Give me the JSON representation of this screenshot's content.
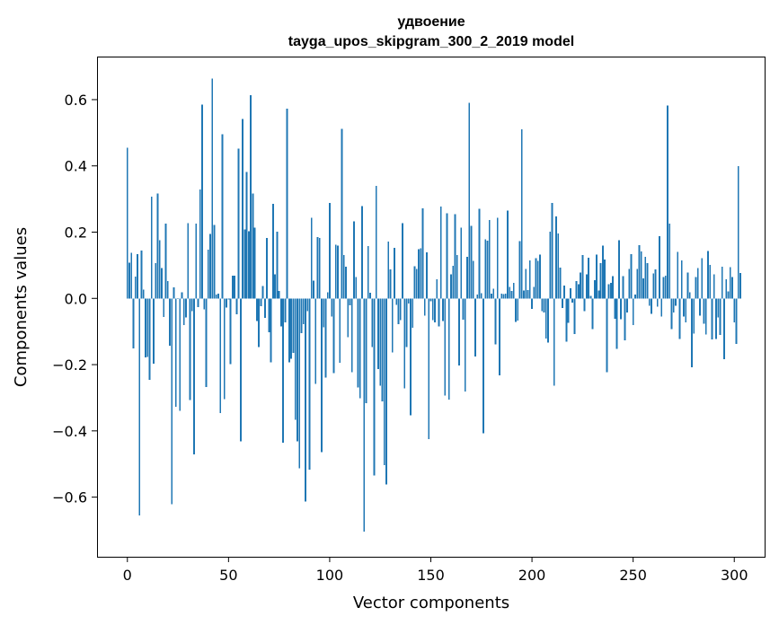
{
  "chart_data": {
    "type": "bar",
    "title_line1": "удвоение",
    "title_line2": "tayga_upos_skipgram_300_2_2019 model",
    "xlabel": "Vector components",
    "ylabel": "Components values",
    "xlim": [
      -15,
      315
    ],
    "ylim": [
      -0.78,
      0.73
    ],
    "xticks": [
      0,
      50,
      100,
      150,
      200,
      250,
      300
    ],
    "xtick_labels": [
      "0",
      "50",
      "100",
      "150",
      "200",
      "250",
      "300"
    ],
    "yticks": [
      -0.6,
      -0.4,
      -0.2,
      0.0,
      0.2,
      0.4,
      0.6
    ],
    "ytick_labels": [
      "−0.6",
      "−0.4",
      "−0.2",
      "0.0",
      "0.2",
      "0.4",
      "0.6"
    ],
    "bar_color": "#1f77b4",
    "grid": false,
    "values": [
      0.455,
      0.108,
      0.137,
      -0.151,
      0.066,
      0.133,
      -0.655,
      0.145,
      0.027,
      -0.178,
      -0.177,
      -0.246,
      0.307,
      -0.197,
      0.107,
      0.317,
      0.175,
      0.091,
      -0.056,
      0.226,
      0.052,
      -0.143,
      -0.621,
      0.033,
      -0.327,
      -0.002,
      -0.339,
      0.018,
      -0.081,
      -0.058,
      0.227,
      -0.307,
      -0.038,
      -0.471,
      0.226,
      -0.027,
      0.329,
      0.585,
      -0.033,
      -0.268,
      0.147,
      0.194,
      0.663,
      0.222,
      0.011,
      0.014,
      -0.346,
      0.495,
      -0.304,
      -0.028,
      -0.003,
      -0.198,
      0.069,
      0.069,
      -0.048,
      0.452,
      -0.432,
      0.541,
      0.208,
      0.381,
      0.203,
      0.613,
      0.316,
      0.213,
      -0.069,
      -0.147,
      -0.024,
      0.038,
      -0.059,
      0.182,
      -0.102,
      -0.193,
      0.285,
      0.072,
      0.202,
      0.023,
      -0.084,
      -0.436,
      -0.073,
      0.573,
      -0.193,
      -0.182,
      -0.165,
      -0.366,
      -0.432,
      -0.513,
      -0.105,
      -0.078,
      -0.613,
      -0.039,
      -0.517,
      0.244,
      0.053,
      -0.258,
      0.185,
      0.183,
      -0.464,
      -0.087,
      -0.239,
      0.019,
      0.288,
      -0.055,
      -0.225,
      0.162,
      0.159,
      -0.195,
      0.512,
      0.131,
      0.096,
      -0.117,
      -0.021,
      -0.223,
      0.232,
      0.064,
      -0.269,
      -0.302,
      0.279,
      -0.704,
      -0.316,
      0.158,
      0.017,
      -0.147,
      -0.534,
      0.339,
      -0.213,
      -0.263,
      -0.311,
      -0.503,
      -0.562,
      0.172,
      0.087,
      -0.163,
      0.153,
      -0.019,
      -0.078,
      -0.066,
      0.227,
      -0.272,
      -0.147,
      -0.015,
      -0.353,
      -0.089,
      0.097,
      0.089,
      0.149,
      0.151,
      0.272,
      -0.052,
      0.139,
      -0.425,
      -0.009,
      -0.065,
      -0.072,
      0.058,
      -0.085,
      0.277,
      -0.069,
      -0.293,
      0.257,
      -0.306,
      0.073,
      0.098,
      0.254,
      0.131,
      -0.203,
      0.213,
      -0.064,
      -0.281,
      0.125,
      0.591,
      0.219,
      0.113,
      -0.175,
      0.012,
      0.271,
      0.016,
      -0.407,
      0.178,
      0.174,
      0.236,
      0.015,
      0.029,
      -0.139,
      0.243,
      -0.233,
      0.014,
      0.013,
      0.014,
      0.265,
      0.035,
      0.022,
      0.047,
      -0.071,
      -0.067,
      0.173,
      0.511,
      0.024,
      0.089,
      0.025,
      0.115,
      -0.032,
      0.035,
      0.121,
      0.113,
      0.132,
      -0.038,
      -0.042,
      -0.121,
      -0.133,
      0.201,
      0.288,
      -0.263,
      0.247,
      0.196,
      0.093,
      -0.029,
      0.039,
      -0.131,
      -0.074,
      0.031,
      -0.013,
      -0.107,
      0.052,
      0.043,
      0.078,
      0.131,
      -0.039,
      0.073,
      0.123,
      0.008,
      -0.093,
      0.055,
      0.132,
      0.024,
      0.107,
      0.159,
      0.118,
      -0.223,
      0.043,
      0.047,
      0.067,
      -0.061,
      -0.153,
      0.176,
      -0.063,
      0.067,
      -0.126,
      -0.042,
      0.089,
      0.134,
      -0.081,
      0.012,
      0.089,
      0.161,
      0.142,
      0.061,
      0.125,
      0.106,
      -0.022,
      -0.047,
      0.075,
      0.087,
      -0.025,
      0.188,
      -0.055,
      0.065,
      0.068,
      0.582,
      0.226,
      -0.093,
      -0.042,
      -0.022,
      0.141,
      -0.123,
      0.114,
      -0.055,
      -0.072,
      0.078,
      0.018,
      -0.208,
      -0.106,
      0.065,
      0.092,
      -0.052,
      0.121,
      -0.077,
      -0.109,
      0.143,
      0.101,
      -0.124,
      0.073,
      -0.123,
      -0.058,
      -0.111,
      0.095,
      -0.183,
      0.058,
      0.021,
      0.094,
      0.065,
      -0.072,
      -0.138,
      0.399,
      0.076
    ]
  }
}
